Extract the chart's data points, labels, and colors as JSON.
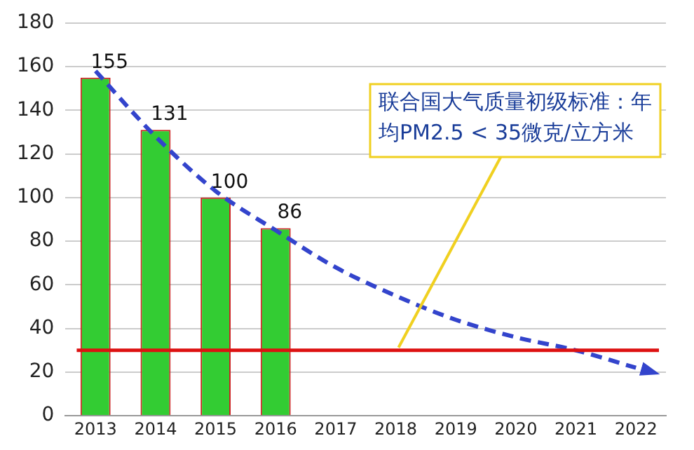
{
  "chart_data": {
    "type": "bar",
    "categories": [
      "2013",
      "2014",
      "2015",
      "2016",
      "2017",
      "2018",
      "2019",
      "2020",
      "2021",
      "2022"
    ],
    "series": [
      {
        "color": "#33cc33",
        "values": [
          155,
          131,
          100,
          86,
          null,
          null,
          null,
          null,
          null,
          null
        ],
        "value_labels": [
          "155",
          "131",
          "100",
          "86",
          null,
          null,
          null,
          null,
          null,
          null
        ]
      },
      {
        "type": "line",
        "color": "#3344cc",
        "line_style": "dashed",
        "marker": "none",
        "values": [
          158,
          128,
          103,
          85,
          68,
          55,
          44,
          36,
          30,
          22
        ]
      }
    ],
    "ylim": [
      0,
      180
    ],
    "yticks": [
      0,
      20,
      40,
      60,
      80,
      100,
      120,
      140,
      160,
      180
    ],
    "grid": "y",
    "legend": false,
    "ref_lines": [
      {
        "axis": "y",
        "value": 30,
        "color": "#dd1111"
      }
    ],
    "annotations": [
      {
        "text": "联合国大气质量初级标准：年均PM2.5 < 35微克/立方米",
        "x": "2018",
        "y": 30
      }
    ]
  }
}
